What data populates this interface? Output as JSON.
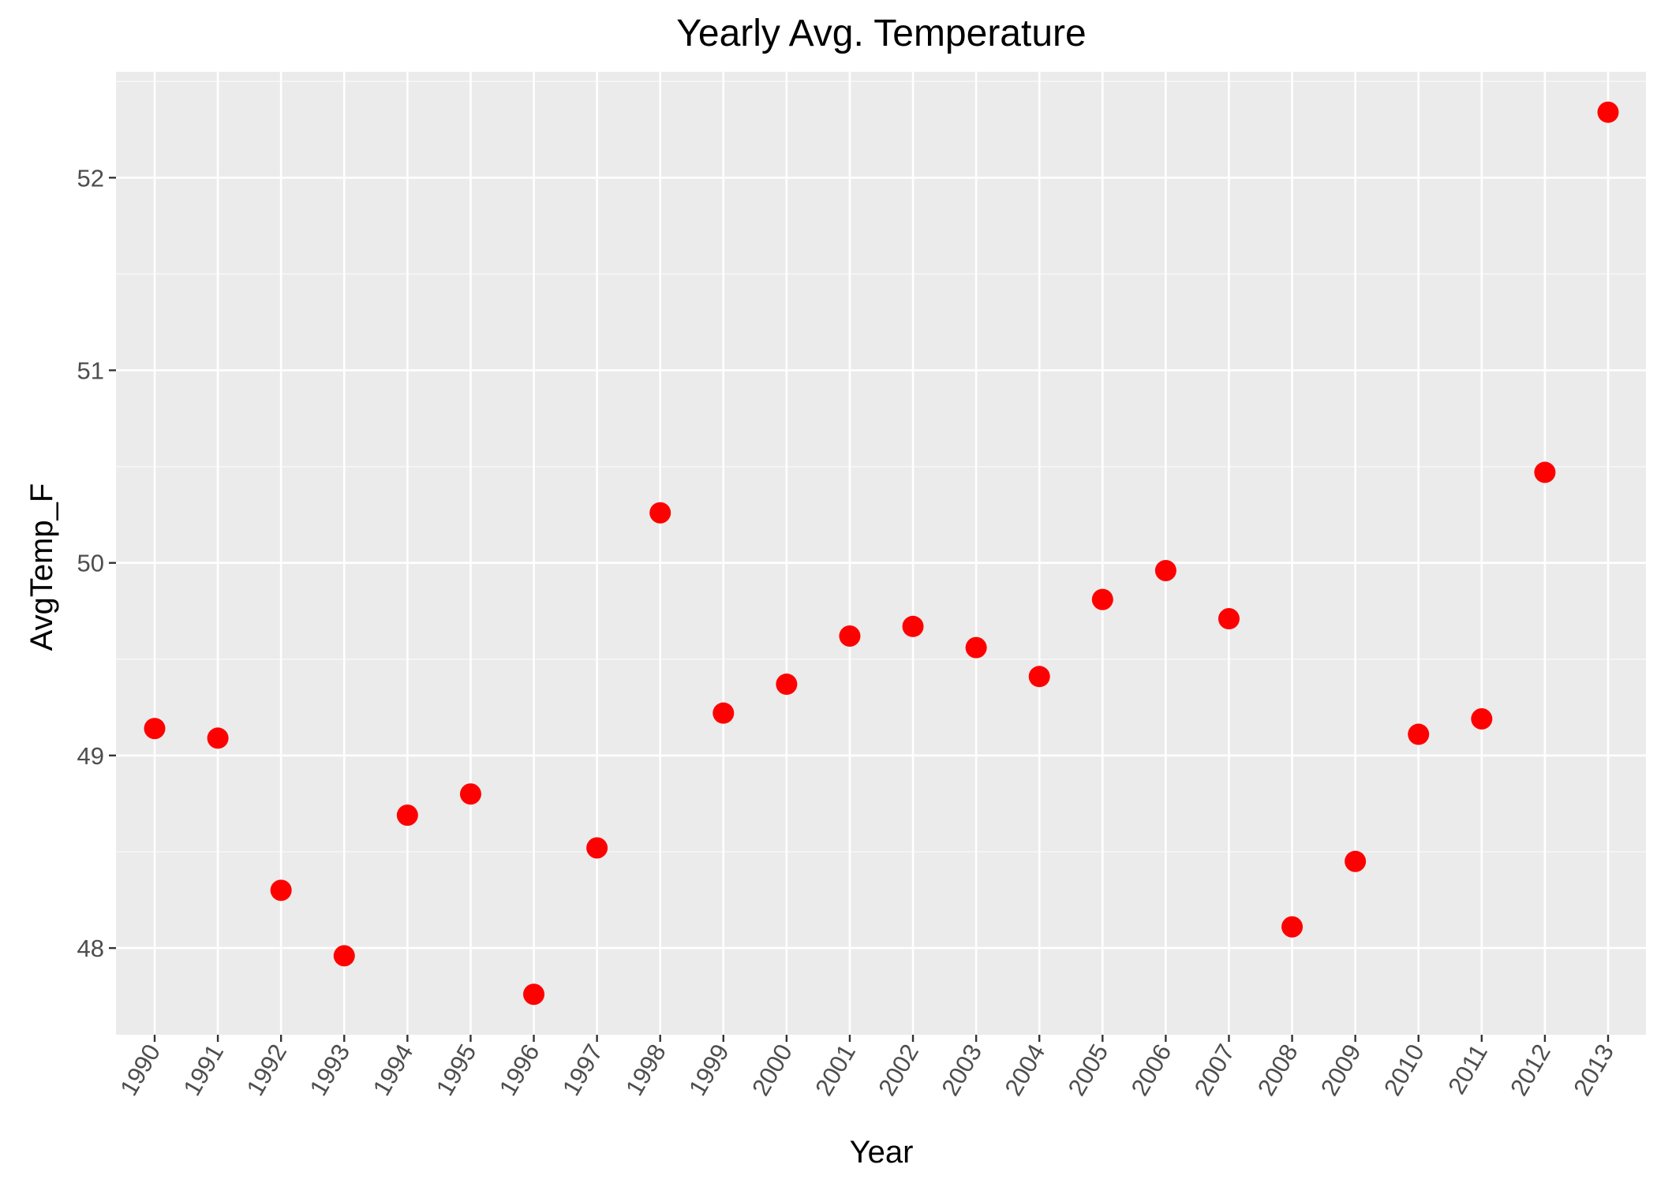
{
  "chart_data": {
    "type": "scatter",
    "title": "Yearly Avg. Temperature",
    "xlabel": "Year",
    "ylabel": "AvgTemp_F",
    "x": [
      "1990",
      "1991",
      "1992",
      "1993",
      "1994",
      "1995",
      "1996",
      "1997",
      "1998",
      "1999",
      "2000",
      "2001",
      "2002",
      "2003",
      "2004",
      "2005",
      "2006",
      "2007",
      "2008",
      "2009",
      "2010",
      "2011",
      "2012",
      "2013"
    ],
    "y": [
      49.14,
      49.09,
      48.3,
      47.96,
      48.69,
      48.8,
      47.76,
      48.52,
      50.26,
      49.22,
      49.37,
      49.62,
      49.67,
      49.56,
      49.41,
      49.81,
      49.96,
      49.71,
      48.11,
      48.45,
      49.11,
      49.19,
      50.47,
      52.34
    ],
    "yticks": [
      48,
      49,
      50,
      51,
      52
    ],
    "ylim": [
      47.55,
      52.55
    ],
    "grid": true,
    "x_tick_rotation_deg": -60,
    "colors": {
      "panel_background": "#ebebeb",
      "grid_major": "#ffffff",
      "grid_minor": "#f7f7f7",
      "point": "#ff0000",
      "tick_text": "#4d4d4d",
      "tick_mark": "#333333",
      "text": "#000000"
    }
  }
}
